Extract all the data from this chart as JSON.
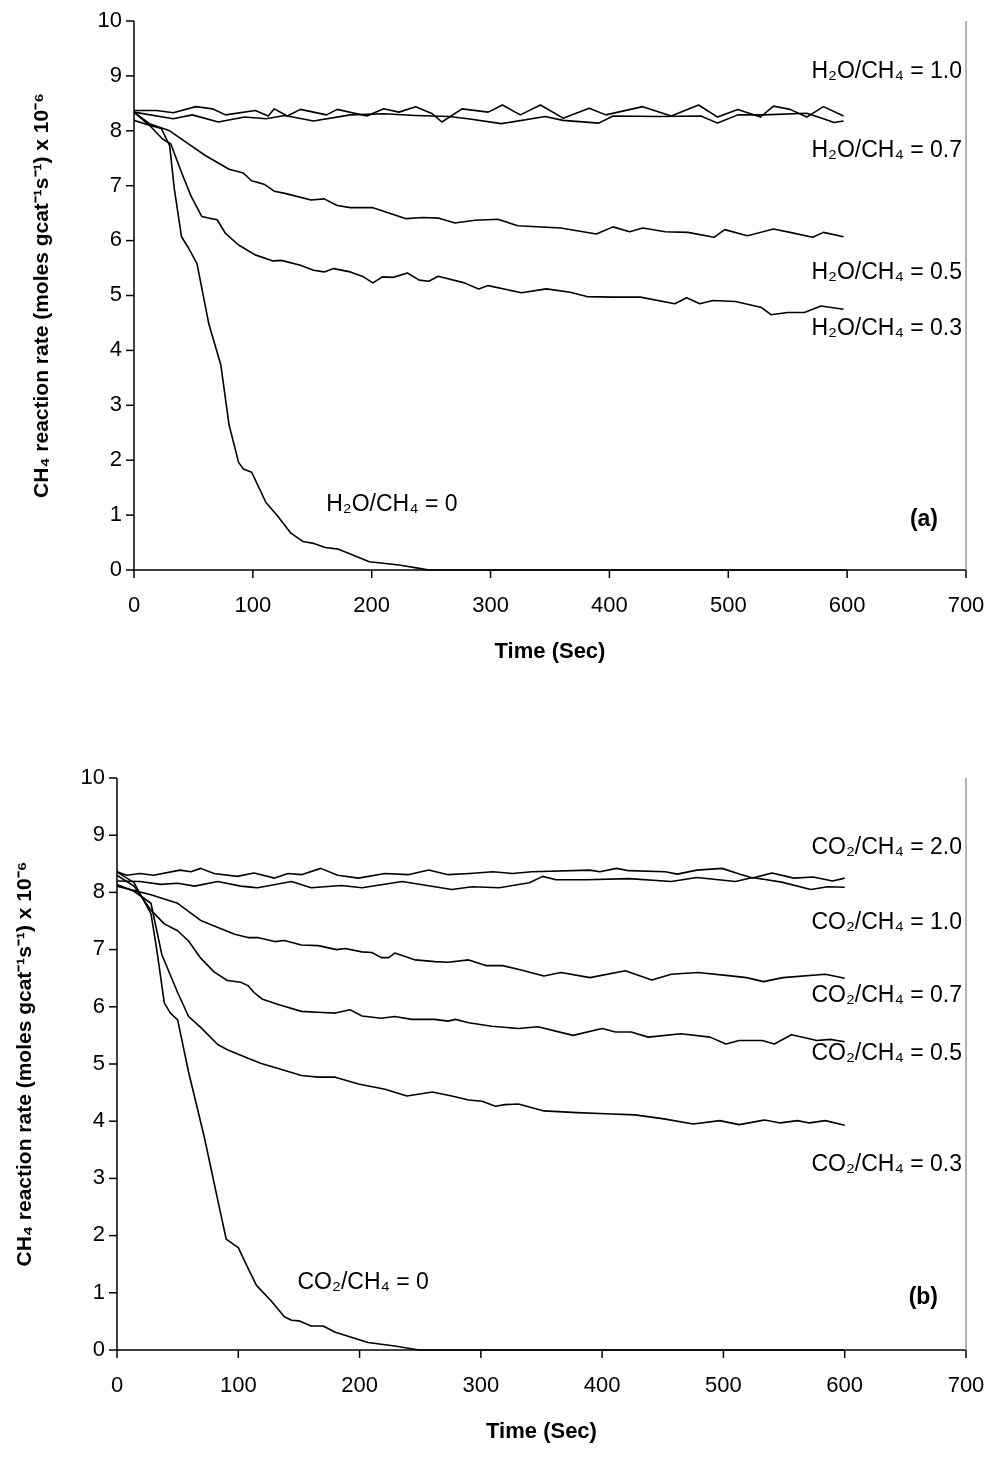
{
  "chart_data": [
    {
      "type": "line",
      "xlabel": "Time (Sec)",
      "ylabel": "CH₄ reaction rate (moles gcat⁻¹s⁻¹) x 10⁻⁶",
      "xlim": [
        0,
        700
      ],
      "ylim": [
        0,
        10
      ],
      "xticks": [
        0,
        100,
        200,
        300,
        400,
        500,
        600,
        700
      ],
      "yticks": [
        0,
        1,
        2,
        3,
        4,
        5,
        6,
        7,
        8,
        9,
        10
      ],
      "grid": false,
      "marker": "none",
      "line_style": "solid",
      "annotations": [
        "(a)"
      ],
      "series": [
        {
          "name": "H₂O/CH₄ = 1.0",
          "color": "#000000",
          "x": [
            0,
            19,
            33,
            52,
            66,
            77,
            102,
            113,
            118,
            129,
            140,
            162,
            171,
            196,
            210,
            223,
            237,
            251,
            259,
            276,
            298,
            310,
            325,
            342,
            361,
            383,
            397,
            428,
            452,
            475,
            491,
            508,
            527,
            538,
            552,
            566,
            580,
            597
          ],
          "values": [
            8.37,
            8.37,
            8.33,
            8.44,
            8.4,
            8.29,
            8.37,
            8.27,
            8.4,
            8.27,
            8.39,
            8.29,
            8.39,
            8.27,
            8.4,
            8.34,
            8.44,
            8.31,
            8.16,
            8.4,
            8.34,
            8.47,
            8.29,
            8.47,
            8.23,
            8.41,
            8.29,
            8.44,
            8.27,
            8.47,
            8.25,
            8.39,
            8.25,
            8.45,
            8.39,
            8.25,
            8.44,
            8.27
          ]
        },
        {
          "name": "H₂O/CH₄ = 0.7",
          "color": "#000000",
          "x": [
            0,
            33,
            49,
            71,
            93,
            111,
            127,
            151,
            182,
            210,
            237,
            265,
            281,
            309,
            346,
            361,
            391,
            403,
            441,
            477,
            491,
            508,
            530,
            566,
            580,
            589,
            597
          ],
          "values": [
            8.34,
            8.22,
            8.29,
            8.16,
            8.25,
            8.22,
            8.28,
            8.18,
            8.29,
            8.31,
            8.28,
            8.26,
            8.22,
            8.13,
            8.26,
            8.19,
            8.14,
            8.27,
            8.26,
            8.27,
            8.14,
            8.29,
            8.29,
            8.32,
            8.22,
            8.15,
            8.18
          ]
        },
        {
          "name": "H₂O/CH₄ = 0.5",
          "color": "#000000",
          "x": [
            0,
            13,
            30,
            44,
            60,
            80,
            92,
            99,
            110,
            118,
            127,
            149,
            160,
            171,
            182,
            201,
            215,
            229,
            243,
            256,
            270,
            287,
            306,
            323,
            359,
            389,
            403,
            417,
            428,
            447,
            466,
            488,
            497,
            516,
            538,
            552,
            571,
            580,
            597
          ],
          "values": [
            8.34,
            8.13,
            8.0,
            7.79,
            7.55,
            7.3,
            7.23,
            7.09,
            7.02,
            6.9,
            6.86,
            6.74,
            6.76,
            6.64,
            6.6,
            6.6,
            6.5,
            6.4,
            6.42,
            6.41,
            6.32,
            6.37,
            6.39,
            6.27,
            6.23,
            6.12,
            6.25,
            6.16,
            6.23,
            6.16,
            6.15,
            6.06,
            6.2,
            6.09,
            6.21,
            6.15,
            6.06,
            6.15,
            6.07
          ]
        },
        {
          "name": "H₂O/CH₄ = 0.3",
          "color": "#000000",
          "x": [
            0,
            13,
            24,
            31,
            40,
            48,
            57,
            63,
            70,
            77,
            88,
            102,
            117,
            124,
            140,
            151,
            160,
            168,
            182,
            193,
            201,
            209,
            218,
            230,
            240,
            248,
            256,
            278,
            290,
            298,
            326,
            347,
            367,
            381,
            403,
            426,
            455,
            465,
            476,
            487,
            506,
            528,
            536,
            550,
            564,
            578,
            597
          ],
          "values": [
            8.34,
            8.1,
            7.85,
            7.76,
            7.24,
            6.81,
            6.44,
            6.41,
            6.38,
            6.13,
            5.92,
            5.74,
            5.63,
            5.64,
            5.55,
            5.46,
            5.43,
            5.49,
            5.43,
            5.34,
            5.23,
            5.34,
            5.33,
            5.41,
            5.28,
            5.26,
            5.35,
            5.23,
            5.12,
            5.18,
            5.05,
            5.12,
            5.06,
            4.98,
            4.97,
            4.97,
            4.85,
            4.96,
            4.85,
            4.91,
            4.89,
            4.78,
            4.65,
            4.69,
            4.69,
            4.81,
            4.75
          ]
        },
        {
          "name": "H₂O/CH₄ = 0",
          "color": "#000000",
          "x": [
            0,
            13,
            23,
            30,
            34,
            40,
            46,
            53,
            63,
            73,
            80,
            88,
            92,
            99,
            111,
            121,
            132,
            142,
            150,
            161,
            172,
            182,
            198,
            223,
            240,
            248,
            300,
            400,
            500,
            600
          ],
          "values": [
            8.19,
            8.1,
            8.04,
            7.73,
            6.93,
            6.07,
            5.86,
            5.58,
            4.48,
            3.74,
            2.64,
            1.96,
            1.84,
            1.78,
            1.23,
            0.98,
            0.67,
            0.52,
            0.49,
            0.41,
            0.38,
            0.29,
            0.15,
            0.09,
            0.03,
            0,
            0,
            0,
            0,
            0
          ]
        }
      ]
    },
    {
      "type": "line",
      "xlabel": "Time (Sec)",
      "ylabel": "CH₄ reaction rate (moles gcat⁻¹s⁻¹) x 10⁻⁶",
      "xlim": [
        0,
        700
      ],
      "ylim": [
        0,
        10
      ],
      "xticks": [
        0,
        100,
        200,
        300,
        400,
        500,
        600,
        700
      ],
      "yticks": [
        0,
        1,
        2,
        3,
        4,
        5,
        6,
        7,
        8,
        9,
        10
      ],
      "grid": false,
      "marker": "none",
      "line_style": "solid",
      "annotations": [
        "(b)"
      ],
      "series": [
        {
          "name": "CO₂/CH₄ = 2.0",
          "color": "#000000",
          "x": [
            0,
            8,
            19,
            30,
            52,
            61,
            69,
            80,
            99,
            113,
            130,
            141,
            152,
            168,
            182,
            199,
            221,
            240,
            257,
            273,
            291,
            310,
            326,
            342,
            390,
            398,
            412,
            422,
            452,
            462,
            478,
            499,
            513,
            524,
            540,
            558,
            574,
            590,
            600
          ],
          "values": [
            8.36,
            8.3,
            8.33,
            8.3,
            8.39,
            8.36,
            8.42,
            8.33,
            8.28,
            8.34,
            8.25,
            8.33,
            8.31,
            8.42,
            8.3,
            8.25,
            8.33,
            8.31,
            8.39,
            8.31,
            8.33,
            8.36,
            8.33,
            8.36,
            8.39,
            8.36,
            8.42,
            8.38,
            8.36,
            8.32,
            8.39,
            8.42,
            8.32,
            8.25,
            8.34,
            8.25,
            8.27,
            8.2,
            8.25
          ]
        },
        {
          "name": "CO₂/CH₄ = 1.0",
          "color": "#000000",
          "x": [
            0,
            19,
            36,
            50,
            64,
            83,
            102,
            116,
            144,
            160,
            185,
            202,
            235,
            262,
            276,
            293,
            315,
            340,
            351,
            362,
            387,
            422,
            457,
            478,
            510,
            524,
            548,
            572,
            586,
            600
          ],
          "values": [
            8.2,
            8.19,
            8.14,
            8.16,
            8.11,
            8.19,
            8.11,
            8.08,
            8.19,
            8.08,
            8.12,
            8.08,
            8.19,
            8.1,
            8.05,
            8.1,
            8.08,
            8.17,
            8.28,
            8.22,
            8.22,
            8.24,
            8.19,
            8.26,
            8.19,
            8.26,
            8.18,
            8.05,
            8.1,
            8.09
          ]
        },
        {
          "name": "CO₂/CH₄ = 0.7",
          "color": "#000000",
          "x": [
            0,
            28,
            50,
            69,
            97,
            108,
            116,
            130,
            138,
            152,
            166,
            181,
            188,
            202,
            210,
            218,
            224,
            229,
            246,
            262,
            273,
            290,
            304,
            318,
            334,
            352,
            366,
            390,
            419,
            441,
            457,
            479,
            506,
            519,
            533,
            549,
            584,
            600
          ],
          "values": [
            8.11,
            7.96,
            7.81,
            7.51,
            7.27,
            7.21,
            7.21,
            7.14,
            7.16,
            7.08,
            7.07,
            7.0,
            7.02,
            6.96,
            6.95,
            6.86,
            6.86,
            6.94,
            6.82,
            6.79,
            6.78,
            6.82,
            6.72,
            6.72,
            6.64,
            6.54,
            6.6,
            6.51,
            6.63,
            6.47,
            6.57,
            6.6,
            6.54,
            6.51,
            6.44,
            6.51,
            6.57,
            6.5
          ]
        },
        {
          "name": "CO₂/CH₄ = 0.5",
          "color": "#000000",
          "x": [
            0,
            14,
            28,
            39,
            50,
            59,
            69,
            80,
            91,
            102,
            108,
            113,
            120,
            133,
            152,
            169,
            180,
            192,
            202,
            218,
            229,
            243,
            262,
            273,
            279,
            290,
            309,
            331,
            347,
            376,
            400,
            411,
            424,
            438,
            465,
            489,
            502,
            513,
            532,
            542,
            556,
            569,
            577,
            588,
            600
          ],
          "values": [
            8.3,
            8.11,
            7.69,
            7.45,
            7.33,
            7.15,
            6.85,
            6.61,
            6.46,
            6.43,
            6.37,
            6.25,
            6.13,
            6.04,
            5.92,
            5.9,
            5.89,
            5.95,
            5.84,
            5.8,
            5.83,
            5.78,
            5.78,
            5.75,
            5.78,
            5.72,
            5.66,
            5.62,
            5.65,
            5.5,
            5.62,
            5.56,
            5.56,
            5.47,
            5.53,
            5.47,
            5.35,
            5.41,
            5.41,
            5.35,
            5.51,
            5.45,
            5.41,
            5.43,
            5.39
          ]
        },
        {
          "name": "CO₂/CH₄ = 0.3",
          "color": "#000000",
          "x": [
            0,
            14,
            28,
            37,
            50,
            59,
            69,
            83,
            91,
            108,
            119,
            133,
            152,
            166,
            180,
            199,
            221,
            239,
            260,
            276,
            290,
            301,
            312,
            320,
            331,
            352,
            379,
            403,
            427,
            451,
            475,
            497,
            513,
            534,
            547,
            561,
            571,
            584,
            600
          ],
          "values": [
            8.14,
            8.02,
            7.81,
            6.91,
            6.25,
            5.83,
            5.64,
            5.34,
            5.25,
            5.1,
            5.01,
            4.92,
            4.8,
            4.77,
            4.77,
            4.65,
            4.56,
            4.44,
            4.51,
            4.44,
            4.37,
            4.35,
            4.26,
            4.29,
            4.3,
            4.18,
            4.15,
            4.13,
            4.11,
            4.04,
            3.95,
            4.01,
            3.94,
            4.02,
            3.97,
            4.01,
            3.97,
            4.01,
            3.93
          ]
        },
        {
          "name": "CO₂/CH₄ = 0",
          "color": "#000000",
          "x": [
            0,
            14,
            28,
            33,
            39,
            44,
            50,
            59,
            72,
            83,
            90,
            100,
            108,
            115,
            127,
            138,
            144,
            150,
            160,
            170,
            180,
            207,
            229,
            249,
            300,
            400,
            500,
            600
          ],
          "values": [
            8.36,
            8.17,
            7.63,
            6.97,
            6.07,
            5.89,
            5.77,
            4.86,
            3.72,
            2.63,
            1.94,
            1.79,
            1.43,
            1.13,
            0.86,
            0.58,
            0.52,
            0.51,
            0.42,
            0.42,
            0.31,
            0.13,
            0.07,
            0,
            0,
            0,
            0,
            0
          ]
        }
      ]
    }
  ]
}
